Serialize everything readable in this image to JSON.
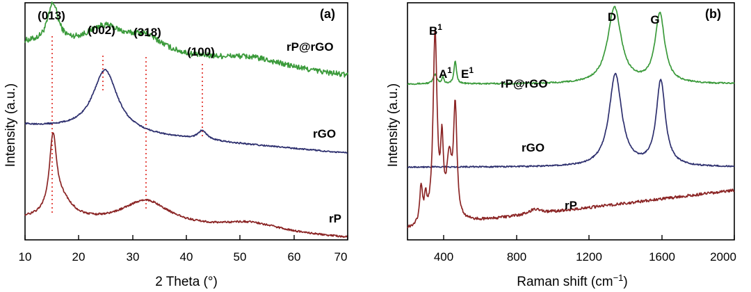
{
  "colors": {
    "green": "#3a9a3a",
    "navy": "#2d2f6e",
    "maroon": "#8b2525",
    "guide": "#e0231c"
  },
  "chart_data": [
    {
      "panel": "(a)",
      "type": "line",
      "xlabel": "2 Theta (°)",
      "ylabel": "Intensity (a.u.)",
      "xlim": [
        10,
        70
      ],
      "xticks": [
        10,
        20,
        30,
        40,
        50,
        60,
        70
      ],
      "xtick_labels": [
        "10",
        "20",
        "30",
        "40",
        "50",
        "60",
        "70"
      ],
      "peak_labels": [
        "(013)",
        "(002)",
        "(318)",
        "(100)"
      ],
      "peak_positions": [
        15.2,
        24.8,
        32.6,
        43.0
      ],
      "series": [
        {
          "name": "rP@rGO",
          "color": "green",
          "baseline": 0.83,
          "noise": 0.012,
          "slope": -0.14,
          "peaks": [
            [
              15.2,
              0.17,
              1.2
            ],
            [
              24.8,
              0.1,
              4.5
            ],
            [
              32.5,
              0.07,
              4.0
            ],
            [
              52.0,
              0.04,
              8.0
            ]
          ]
        },
        {
          "name": "rGO",
          "color": "navy",
          "baseline": 0.48,
          "noise": 0.003,
          "slope": -0.12,
          "peaks": [
            [
              24.9,
              0.27,
              2.8
            ],
            [
              43.0,
              0.04,
              1.0
            ]
          ]
        },
        {
          "name": "rP",
          "color": "maroon",
          "baseline": 0.07,
          "noise": 0.004,
          "slope": -0.08,
          "peaks": [
            [
              15.2,
              0.32,
              0.8
            ],
            [
              16.8,
              0.08,
              2.5
            ],
            [
              32.5,
              0.11,
              5.5
            ],
            [
              52.0,
              0.04,
              7.0
            ]
          ]
        }
      ]
    },
    {
      "panel": "(b)",
      "type": "line",
      "xlabel": "Raman shift (cm−1)",
      "ylabel": "Intensity (a.u.)",
      "xlim": [
        200,
        2000
      ],
      "xticks": [
        400,
        800,
        1200,
        1600,
        2000
      ],
      "xtick_labels": [
        "400",
        "800",
        "1200",
        "1600",
        "2000"
      ],
      "peak_labels": [
        "B1",
        "A1",
        "E1",
        "D",
        "G"
      ],
      "series": [
        {
          "name": "rP@rGO",
          "color": "green",
          "baseline": 0.66,
          "noise": 0.003,
          "slope": 0.0,
          "peaks": [
            [
              352,
              0.04,
              12
            ],
            [
              395,
              0.03,
              6
            ],
            [
              463,
              0.1,
              8
            ],
            [
              1340,
              0.33,
              45
            ],
            [
              1590,
              0.3,
              32
            ]
          ]
        },
        {
          "name": "rGO",
          "color": "navy",
          "baseline": 0.3,
          "noise": 0.003,
          "slope": 0.0,
          "peaks": [
            [
              1345,
              0.4,
              42
            ],
            [
              1595,
              0.37,
              30
            ]
          ]
        },
        {
          "name": "rP",
          "color": "maroon",
          "baseline": 0.03,
          "noise": 0.006,
          "slope": 0.17,
          "peaks": [
            [
              275,
              0.16,
              9
            ],
            [
              300,
              0.1,
              8
            ],
            [
              352,
              0.82,
              13
            ],
            [
              390,
              0.3,
              9
            ],
            [
              430,
              0.25,
              18
            ],
            [
              463,
              0.47,
              11
            ],
            [
              900,
              0.02,
              40
            ]
          ]
        }
      ]
    }
  ]
}
